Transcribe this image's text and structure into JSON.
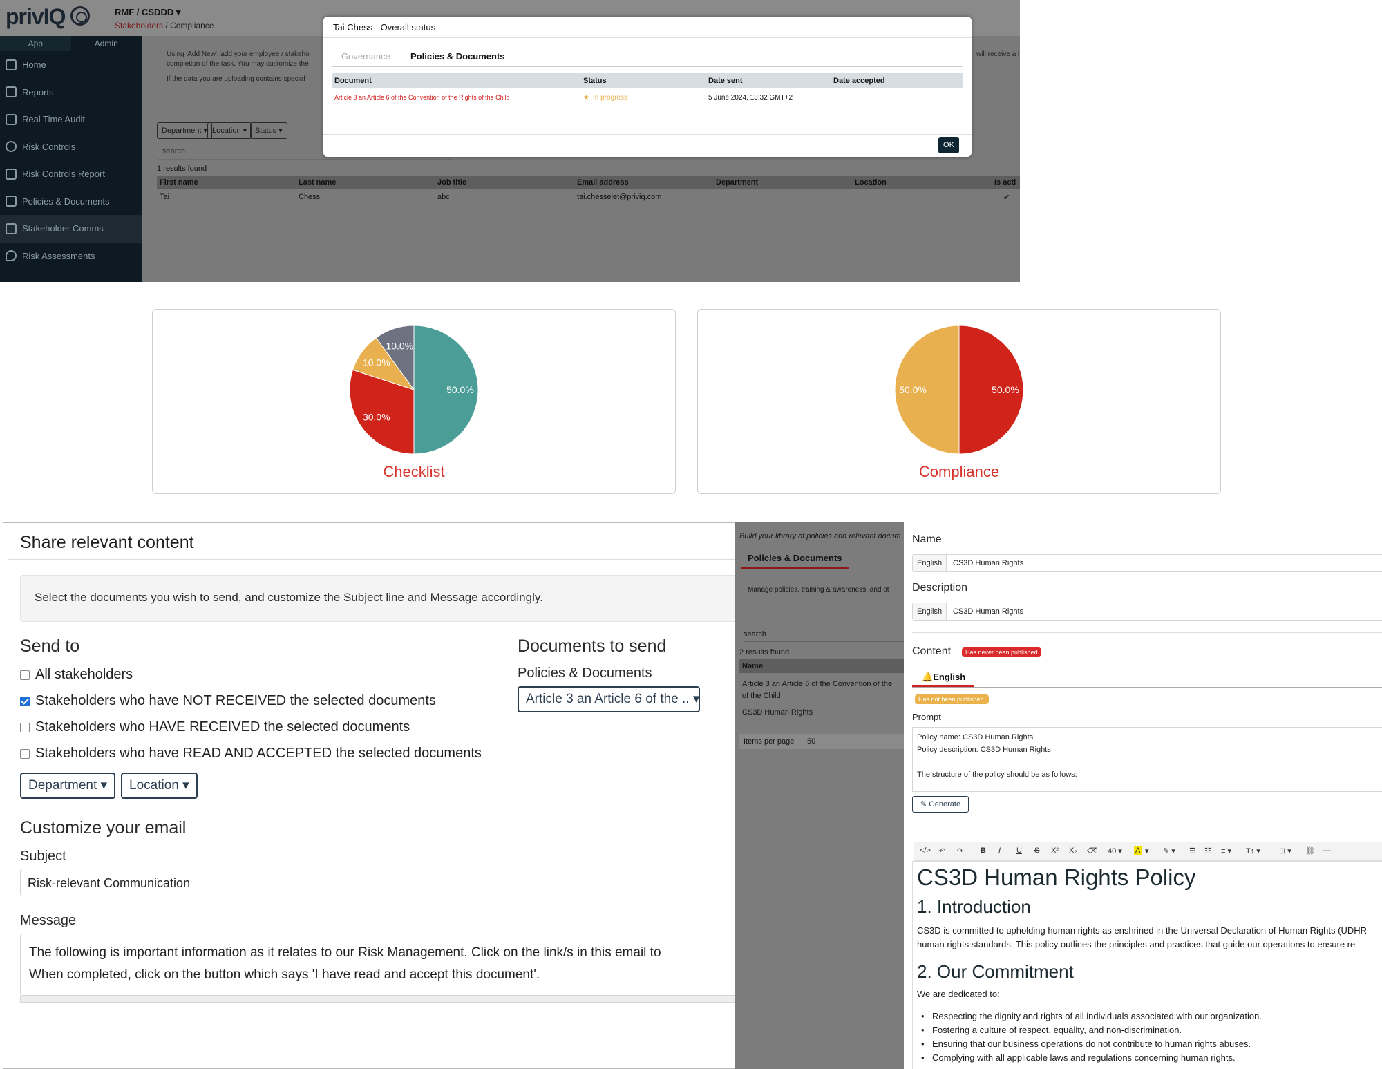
{
  "top": {
    "app_logo": "privIQ",
    "project": "RMF / CSDDD",
    "breadcrumb": {
      "parent": "Stakeholders",
      "separator": "/",
      "current": "Compliance"
    },
    "sidebar": {
      "tabs": [
        "App",
        "Admin"
      ],
      "items": [
        {
          "label": "Home",
          "icon": "home-icon"
        },
        {
          "label": "Reports",
          "icon": "report-icon"
        },
        {
          "label": "Real Time Audit",
          "icon": "audit-icon"
        },
        {
          "label": "Risk Controls",
          "icon": "check-circle-icon"
        },
        {
          "label": "Risk Controls Report",
          "icon": "report-lock-icon"
        },
        {
          "label": "Policies & Documents",
          "icon": "bank-icon"
        },
        {
          "label": "Stakeholder Comms",
          "icon": "org-chart-icon"
        },
        {
          "label": "Risk Assessments",
          "icon": "pin-shield-icon"
        }
      ]
    },
    "intro_line1": "Using 'Add New', add your employee / stakeho",
    "intro_line1_end": "will receive a l",
    "intro_line2": "completion of the task. You may customize the",
    "intro_line3": "If the data you are uploading contains special",
    "filters": [
      "Department",
      "Location",
      "Status"
    ],
    "search_placeholder": "search",
    "results": "1 results found",
    "columns": [
      "First name",
      "Last name",
      "Job title",
      "Email address",
      "Department",
      "Location",
      "Is acti"
    ],
    "row": {
      "first": "Tai",
      "last": "Chess",
      "job": "abc",
      "email": "tai.chesselet@priviq.com",
      "active": "✔"
    },
    "modal": {
      "title": "Tai Chess - Overall status",
      "tabs": [
        "Governance",
        "Policies & Documents"
      ],
      "columns": [
        "Document",
        "Status",
        "Date sent",
        "Date accepted"
      ],
      "row": {
        "document": "Article 3 an Article 6 of the Convention of the Rights of the Child",
        "status": "In progress",
        "date_sent": "5 June 2024, 13:32 GMT+2",
        "date_accepted": ""
      },
      "ok": "OK"
    }
  },
  "chart_data": [
    {
      "type": "pie",
      "title": "Checklist",
      "slices": [
        {
          "value": 50.0,
          "label": "50.0%",
          "color": "#4b9e98"
        },
        {
          "value": 30.0,
          "label": "30.0%",
          "color": "#d0231a"
        },
        {
          "value": 10.0,
          "label": "10.0%",
          "color": "#e8b04e"
        },
        {
          "value": 10.0,
          "label": "10.0%",
          "color": "#6d7280"
        }
      ]
    },
    {
      "type": "pie",
      "title": "Compliance",
      "slices": [
        {
          "value": 50.0,
          "label": "50.0%",
          "color": "#d0231a"
        },
        {
          "value": 50.0,
          "label": "50.0%",
          "color": "#e8b04e"
        }
      ]
    }
  ],
  "share": {
    "title": "Share relevant content",
    "info": "Select the documents you wish to send, and customize the Subject line and Message accordingly.",
    "send_to": "Send to",
    "options": [
      {
        "label": "All stakeholders",
        "checked": false
      },
      {
        "label": "Stakeholders who have NOT RECEIVED the selected documents",
        "checked": true
      },
      {
        "label": "Stakeholders who HAVE RECEIVED the selected documents",
        "checked": false
      },
      {
        "label": "Stakeholders who have READ AND ACCEPTED the selected documents",
        "checked": false
      }
    ],
    "department": "Department",
    "location": "Location",
    "docs_title": "Documents to send",
    "docs_sub": "Policies & Documents",
    "docs_select": "Article 3 an Article 6 of the ..",
    "customize": "Customize your email",
    "subject_label": "Subject",
    "subject_value": "Risk-relevant Communication",
    "message_label": "Message",
    "message_line1": "The following is important information as it relates to our Risk Management. Click on the link/s in this email to",
    "message_line2": "When completed, click on the button which says 'I have read and accept this document'."
  },
  "library": {
    "heading": "Build your library of policies and relevant docum",
    "tab": "Policies & Documents",
    "desc": "Manage policies, training & awareness, and ot",
    "search": "search",
    "results": "2 results found",
    "col": "Name",
    "rows": [
      "Article 3 an Article 6 of the Convention of the",
      "of the Child",
      "CS3D Human Rights"
    ],
    "per_page_label": "Items per page",
    "per_page": "50"
  },
  "editor": {
    "name_label": "Name",
    "lang": "English",
    "name_value": "CS3D Human Rights",
    "desc_label": "Description",
    "desc_value": "CS3D Human Rights",
    "content_label": "Content",
    "never_published": "Has never been published",
    "content_tab": "English",
    "not_published": "Has not been published.",
    "prompt_label": "Prompt",
    "prompt_lines": [
      "Policy name: CS3D Human Rights",
      "Policy description: CS3D Human Rights",
      "The structure of the policy should be as follows:"
    ],
    "generate": "Generate",
    "toolbar": [
      "</>",
      "↶",
      "↷",
      "B",
      "I",
      "U",
      "S",
      "X²",
      "X₂",
      "⌫",
      "40 ▾",
      "A",
      "▾",
      "✎ ▾",
      "☰",
      "☷",
      "≡ ▾",
      "T↕ ▾",
      "⊞ ▾",
      "⛓",
      "—"
    ],
    "doc_title": "CS3D Human Rights Policy",
    "h1": "1. Introduction",
    "p1": "CS3D is committed to upholding human rights as enshrined in the Universal Declaration of Human Rights (UDHR",
    "p2": "human rights standards. This policy outlines the principles and practices that guide our operations to ensure re",
    "h2": "2. Our Commitment",
    "p3": "We are dedicated to:",
    "bullets": [
      "Respecting the dignity and rights of all individuals associated with our organization.",
      "Fostering a culture of respect, equality, and non-discrimination.",
      "Ensuring that our business operations do not contribute to human rights abuses.",
      "Complying with all applicable laws and regulations concerning human rights."
    ]
  }
}
